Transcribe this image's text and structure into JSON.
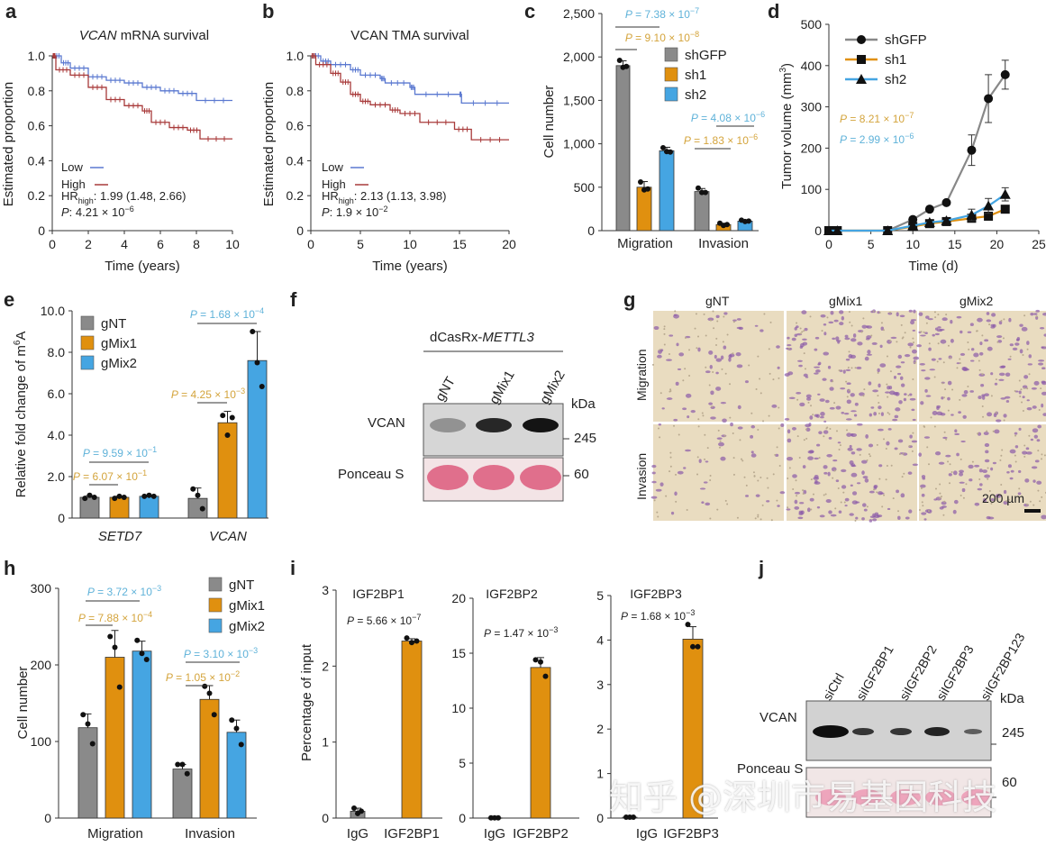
{
  "panels": {
    "a": "a",
    "b": "b",
    "c": "c",
    "d": "d",
    "e": "e",
    "f": "f",
    "g": "g",
    "h": "h",
    "i": "i",
    "j": "j"
  },
  "colors": {
    "gray": "#8a8a8a",
    "orange": "#e0900f",
    "blue": "#45a5e2",
    "p_blue": "#5fb2d9",
    "p_orange": "#d4a43c",
    "km_low": "#5a78d0",
    "km_high": "#a83a3a"
  },
  "blot_f": {
    "construct_prefix": "dCasRx-",
    "construct_gene": "METTL3",
    "lanes": [
      "gNT",
      "gMix1",
      "gMix2"
    ],
    "kda": "kDa",
    "rows": [
      "VCAN",
      "Ponceau S"
    ],
    "markers": [
      "245",
      "60"
    ]
  },
  "images_g": {
    "columns": [
      "gNT",
      "gMix1",
      "gMix2"
    ],
    "rows": [
      "Migration",
      "Invasion"
    ],
    "scale_bar": "200 µm"
  },
  "blot_j": {
    "lanes": [
      "siCtrl",
      "siIGF2BP1",
      "siIGF2BP2",
      "siIGF2BP3",
      "siIGF2BP123"
    ],
    "kda": "kDa",
    "rows": [
      "VCAN",
      "Ponceau S"
    ],
    "markers": [
      "245",
      "60"
    ]
  },
  "watermark": "知乎 @深圳市易基因科技",
  "chart_data": [
    {
      "panel": "a",
      "type": "line",
      "title_italic": "VCAN",
      "title_rest": " mRNA survival",
      "xlabel": "Time (years)",
      "ylabel": "Estimated proportion",
      "xlim": [
        0,
        10
      ],
      "xticks": [
        0,
        2,
        4,
        6,
        8,
        10
      ],
      "ylim": [
        0,
        1
      ],
      "yticks": [
        "0",
        "0.2",
        "0.4",
        "0.6",
        "0.8",
        "1.0"
      ],
      "step": true,
      "legend": "bottom-left",
      "series": [
        {
          "name": "Low",
          "color": "km_low",
          "x": [
            0,
            0.5,
            1,
            2,
            3,
            4,
            5,
            6,
            7,
            8,
            10
          ],
          "y": [
            1,
            0.96,
            0.93,
            0.88,
            0.86,
            0.845,
            0.82,
            0.8,
            0.785,
            0.745,
            0.745
          ]
        },
        {
          "name": "High",
          "color": "km_high",
          "x": [
            0,
            0.2,
            1,
            2,
            3,
            4,
            5,
            5.5,
            6.5,
            7.5,
            8.2,
            10
          ],
          "y": [
            1,
            0.92,
            0.89,
            0.82,
            0.75,
            0.715,
            0.685,
            0.62,
            0.59,
            0.575,
            0.525,
            0.525
          ]
        }
      ],
      "hr_label": "HR",
      "hr_sub": "high",
      "hr_value": ": 1.99 (1.48, 2.66)",
      "p_label": "P",
      "p_value": ": 4.21 × 10",
      "p_exp": "−6"
    },
    {
      "panel": "b",
      "type": "line",
      "title_italic": "",
      "title_rest": "VCAN TMA survival",
      "xlabel": "Time (years)",
      "ylabel": "Estimated proportion",
      "xlim": [
        0,
        20
      ],
      "xticks": [
        0,
        5,
        10,
        15,
        20
      ],
      "ylim": [
        0,
        1
      ],
      "yticks": [
        "0",
        "0.2",
        "0.4",
        "0.6",
        "0.8",
        "1.0"
      ],
      "step": true,
      "legend": "bottom-left",
      "series": [
        {
          "name": "Low",
          "color": "km_low",
          "x": [
            0,
            1,
            2,
            4,
            5,
            7,
            7.5,
            10,
            10.5,
            15,
            15.2,
            20
          ],
          "y": [
            1,
            0.97,
            0.95,
            0.92,
            0.89,
            0.87,
            0.845,
            0.82,
            0.78,
            0.78,
            0.73,
            0.73
          ]
        },
        {
          "name": "High",
          "color": "km_high",
          "x": [
            0,
            0.5,
            2,
            3,
            4,
            5,
            6,
            8,
            9,
            11,
            14.5,
            16.2,
            20
          ],
          "y": [
            1,
            0.95,
            0.9,
            0.85,
            0.78,
            0.74,
            0.72,
            0.69,
            0.67,
            0.62,
            0.58,
            0.52,
            0.52
          ]
        }
      ],
      "hr_label": "HR",
      "hr_sub": "high",
      "hr_value": ": 2.13 (1.13, 3.98)",
      "p_label": "P",
      "p_value": ": 1.9 × 10",
      "p_exp": "−2"
    },
    {
      "panel": "c",
      "type": "bar",
      "ylabel": "Cell number",
      "categories": [
        "Migration",
        "Invasion"
      ],
      "ylim": [
        0,
        2500
      ],
      "yticks": [
        "0",
        "500",
        "1,000",
        "1,500",
        "2,000",
        "2,500"
      ],
      "legend": "top-right",
      "series": [
        {
          "name": "shGFP",
          "color": "gray",
          "values": [
            1900,
            450
          ],
          "sd": [
            55,
            35
          ],
          "points": [
            [
              1960,
              1880,
              1890
            ],
            [
              490,
              440,
              440
            ]
          ]
        },
        {
          "name": "sh1",
          "color": "orange",
          "values": [
            500,
            70
          ],
          "sd": [
            65,
            15
          ],
          "points": [
            [
              560,
              470,
              480
            ],
            [
              85,
              60,
              70
            ]
          ]
        },
        {
          "name": "sh2",
          "color": "blue",
          "values": [
            920,
            110
          ],
          "sd": [
            40,
            12
          ],
          "points": [
            [
              955,
              910,
              905
            ],
            [
              120,
              105,
              110
            ]
          ]
        }
      ],
      "annotations": [
        {
          "text": "P = 7.38 × 10",
          "exp": "−7",
          "color": "p_blue"
        },
        {
          "text": "P = 9.10 × 10",
          "exp": "−8",
          "color": "p_orange"
        },
        {
          "text": "P = 4.08 × 10",
          "exp": "−6",
          "color": "p_blue"
        },
        {
          "text": "P = 1.83 × 10",
          "exp": "−6",
          "color": "p_orange"
        }
      ]
    },
    {
      "panel": "d",
      "type": "line",
      "xlabel": "Time (d)",
      "ylabel": "Tumor volume (mm",
      "ylabel_sup": "3",
      "ylabel_end": ")",
      "xlim": [
        0,
        25
      ],
      "xticks": [
        0,
        5,
        10,
        15,
        20,
        25
      ],
      "ylim": [
        0,
        500
      ],
      "yticks": [
        "0",
        "100",
        "200",
        "300",
        "400",
        "500"
      ],
      "legend": "top-left",
      "series": [
        {
          "name": "shGFP",
          "color": "#888888",
          "marker": "circle",
          "x": [
            0,
            1,
            7,
            10,
            12,
            14,
            17,
            19,
            21
          ],
          "y": [
            0,
            0,
            0,
            27,
            52,
            68,
            195,
            320,
            378
          ],
          "sd": [
            0,
            0,
            0,
            0,
            0,
            0,
            37,
            58,
            35
          ]
        },
        {
          "name": "sh1",
          "color": "#e0900f",
          "marker": "square",
          "x": [
            0,
            1,
            7,
            10,
            12,
            14,
            17,
            19,
            21
          ],
          "y": [
            0,
            0,
            0,
            10,
            17,
            22,
            30,
            35,
            52
          ],
          "sd": [
            0,
            0,
            0,
            0,
            0,
            0,
            0,
            0,
            0
          ]
        },
        {
          "name": "sh2",
          "color": "#45a5e2",
          "marker": "triangle",
          "x": [
            0,
            1,
            7,
            10,
            12,
            14,
            17,
            19,
            21
          ],
          "y": [
            0,
            0,
            0,
            12,
            20,
            24,
            38,
            60,
            88
          ],
          "sd": [
            0,
            0,
            0,
            0,
            0,
            0,
            14,
            18,
            16
          ]
        }
      ],
      "annotations": [
        {
          "text": "P = 8.21 × 10",
          "exp": "−7",
          "color": "p_orange"
        },
        {
          "text": "P = 2.99 × 10",
          "exp": "−6",
          "color": "p_blue"
        }
      ]
    },
    {
      "panel": "e",
      "type": "bar",
      "ylabel": "Relative fold change of m",
      "ylabel_sup": "6",
      "ylabel_end": "A",
      "categories": [
        "SETD7",
        "VCAN"
      ],
      "categories_italic": true,
      "ylim": [
        0,
        10
      ],
      "yticks": [
        "0",
        "2.0",
        "4.0",
        "6.0",
        "8.0",
        "10.0"
      ],
      "legend": "top-left",
      "series": [
        {
          "name": "gNT",
          "color": "gray",
          "values": [
            1.0,
            0.95
          ],
          "sd": [
            0.08,
            0.5
          ],
          "points": [
            [
              0.95,
              1.1,
              1.0
            ],
            [
              1.4,
              1.1,
              0.45
            ]
          ]
        },
        {
          "name": "gMix1",
          "color": "orange",
          "values": [
            1.0,
            4.6
          ],
          "sd": [
            0.05,
            0.55
          ],
          "points": [
            [
              0.95,
              1.05,
              1.0
            ],
            [
              4.95,
              4.0,
              4.85
            ]
          ]
        },
        {
          "name": "gMix2",
          "color": "blue",
          "values": [
            1.05,
            7.6
          ],
          "sd": [
            0.05,
            1.4
          ],
          "points": [
            [
              1.05,
              1.1,
              1.05
            ],
            [
              9.0,
              7.5,
              6.35
            ]
          ]
        }
      ],
      "annotations": [
        {
          "text": "P = 9.59 × 10",
          "exp": "−1",
          "color": "p_blue"
        },
        {
          "text": "P = 6.07 × 10",
          "exp": "−1",
          "color": "p_orange"
        },
        {
          "text": "P = 1.68 × 10",
          "exp": "−4",
          "color": "p_blue"
        },
        {
          "text": "P = 4.25 × 10",
          "exp": "−3",
          "color": "p_orange"
        }
      ]
    },
    {
      "panel": "h",
      "type": "bar",
      "ylabel": "Cell number",
      "categories": [
        "Migration",
        "Invasion"
      ],
      "ylim": [
        0,
        300
      ],
      "yticks": [
        "0",
        "100",
        "200",
        "300"
      ],
      "legend": "top-right",
      "series": [
        {
          "name": "gNT",
          "color": "gray",
          "values": [
            118,
            64
          ],
          "sd": [
            18,
            6
          ],
          "points": [
            [
              135,
              123,
              97
            ],
            [
              70,
              70,
              58
            ]
          ]
        },
        {
          "name": "gMix1",
          "color": "orange",
          "values": [
            210,
            155
          ],
          "sd": [
            35,
            18
          ],
          "points": [
            [
              237,
              223,
              171
            ],
            [
              172,
              163,
              135
            ]
          ]
        },
        {
          "name": "gMix2",
          "color": "blue",
          "values": [
            218,
            112
          ],
          "sd": [
            13,
            16
          ],
          "points": [
            [
              232,
              215,
              207
            ],
            [
              128,
              117,
              96
            ]
          ]
        }
      ],
      "annotations": [
        {
          "text": "P = 3.72 × 10",
          "exp": "−3",
          "color": "p_blue"
        },
        {
          "text": "P = 7.88 × 10",
          "exp": "−4",
          "color": "p_orange"
        },
        {
          "text": "P = 3.10 × 10",
          "exp": "−3",
          "color": "p_blue"
        },
        {
          "text": "P = 1.05 × 10",
          "exp": "−2",
          "color": "p_orange"
        }
      ]
    },
    {
      "panel": "i1",
      "type": "bar",
      "title": "IGF2BP1",
      "ylabel": "Percentage of input",
      "categories": [
        "IgG",
        "IGF2BP1"
      ],
      "ylim": [
        0,
        3
      ],
      "yticks": [
        "0",
        "1",
        "2",
        "3"
      ],
      "series": [
        {
          "colors": [
            "gray",
            "orange"
          ],
          "values": [
            0.09,
            2.33
          ],
          "sd": [
            0.04,
            0.03
          ],
          "points": [
            [
              0.13,
              0.06,
              0.09
            ],
            [
              2.37,
              2.31,
              2.33
            ]
          ]
        }
      ],
      "annotations": [
        {
          "text": "P = 5.66 × 10",
          "exp": "−7",
          "color": "#222222"
        }
      ]
    },
    {
      "panel": "i2",
      "type": "bar",
      "title": "IGF2BP2",
      "categories": [
        "IgG",
        "IGF2BP2"
      ],
      "ylim": [
        0,
        20
      ],
      "yticks": [
        "0",
        "5",
        "10",
        "15",
        "20"
      ],
      "series": [
        {
          "colors": [
            "gray",
            "orange"
          ],
          "values": [
            0.02,
            13.7
          ],
          "sd": [
            0,
            0.9
          ],
          "points": [
            [
              0.02,
              0.02,
              0.02
            ],
            [
              14.4,
              14.2,
              12.9
            ]
          ]
        }
      ],
      "annotations": [
        {
          "text": "P = 1.47 × 10",
          "exp": "−3",
          "color": "#222222"
        }
      ]
    },
    {
      "panel": "i3",
      "type": "bar",
      "title": "IGF2BP3",
      "categories": [
        "IgG",
        "IGF2BP3"
      ],
      "ylim": [
        0,
        5
      ],
      "yticks": [
        "0",
        "1",
        "2",
        "3",
        "4",
        "5"
      ],
      "series": [
        {
          "colors": [
            "gray",
            "orange"
          ],
          "values": [
            0.02,
            4.02
          ],
          "sd": [
            0,
            0.28
          ],
          "points": [
            [
              0.02,
              0.02,
              0.02
            ],
            [
              4.35,
              3.85,
              3.85
            ]
          ]
        }
      ],
      "annotations": [
        {
          "text": "P = 1.68 × 10",
          "exp": "−3",
          "color": "#222222"
        }
      ]
    }
  ]
}
